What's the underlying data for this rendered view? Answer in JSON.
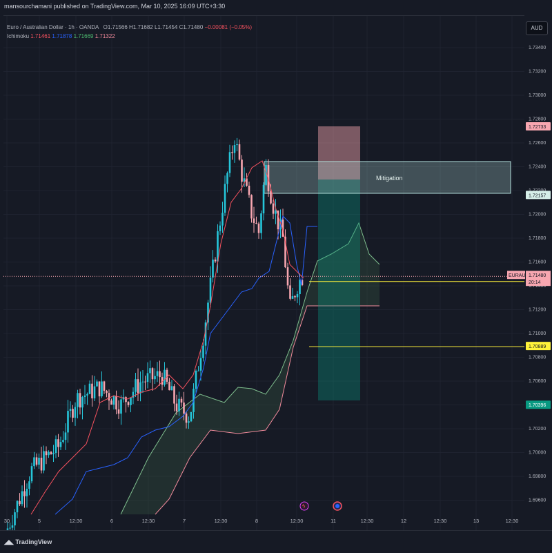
{
  "header": {
    "published": "mansourchamani published on TradingView.com, Mar 10, 2025 16:09 UTC+3:30"
  },
  "legend": {
    "symbol": "Euro / Australian Dollar · 1h · OANDA",
    "open": "O1.71566",
    "high": "H1.71682",
    "low": "L1.71454",
    "close": "C1.71480",
    "change": "−0.00081 (−0.05%)",
    "indicator": "Ichimoku",
    "ichimoku_values": [
      "1.71461",
      "1.71878",
      "1.71669",
      "1.71322"
    ]
  },
  "currency_badge": "AUD",
  "price_axis": {
    "ticks": [
      "1.73400",
      "1.73200",
      "1.73000",
      "1.72800",
      "1.72600",
      "1.72400",
      "1.72200",
      "1.72000",
      "1.71800",
      "1.71600",
      "1.71400",
      "1.71200",
      "1.71000",
      "1.70800",
      "1.70600",
      "1.70400",
      "1.70200",
      "1.70000",
      "1.69800",
      "1.69600"
    ],
    "markers": [
      {
        "label": "1.72733",
        "bg": "#f7a6b0",
        "fg": "#131722"
      },
      {
        "label": "1.72157",
        "bg": "#d6efe9",
        "fg": "#131722"
      },
      {
        "label": "1.71436",
        "bg": "#fff23a",
        "fg": "#131722"
      },
      {
        "label": "1.70889",
        "bg": "#fff23a",
        "fg": "#131722"
      },
      {
        "label": "1.70396",
        "bg": "#089981",
        "fg": "#ffffff"
      }
    ],
    "symbol_tag": {
      "label": "EURAUD",
      "price": "1.71480",
      "countdown": "20:14",
      "bg": "#f7a6b0",
      "fg": "#131722"
    }
  },
  "time_axis": [
    "30",
    "5",
    "12:30",
    "6",
    "12:30",
    "7",
    "12:30",
    "8",
    "12:30",
    "11",
    "12:30",
    "12",
    "12:30",
    "13",
    "12:30"
  ],
  "annotations": {
    "mitigation_label": "Mitigation"
  },
  "footer": {
    "brand": "TradingView"
  },
  "colors": {
    "background": "#161a25",
    "up_candle": "#26c6da",
    "down_candle": "#f7a6b0",
    "kijun": "#2962ff",
    "tenkan": "#f7525f",
    "cloud": "#2e4a3c",
    "mitigation_box": "#b2dfdb",
    "long_target": "#089981",
    "long_stop": "#f7525f",
    "level_line": "#fff23a"
  },
  "icons": [
    "flash-event-icon",
    "economic-event-icon",
    "tradingview-logo-icon"
  ]
}
